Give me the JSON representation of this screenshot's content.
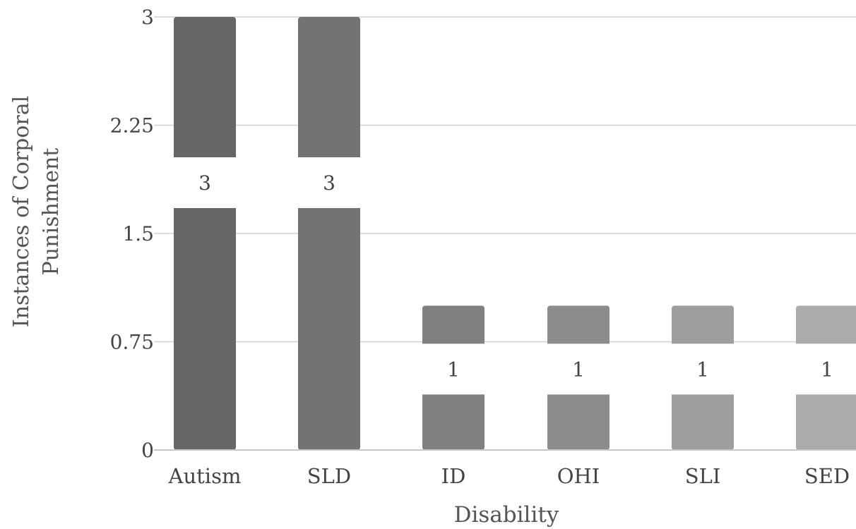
{
  "chart_data": {
    "type": "bar",
    "title": "",
    "xlabel": "Disability",
    "ylabel": "Instances of Corporal Punishment",
    "categories": [
      "Autism",
      "SLD",
      "ID",
      "OHI",
      "SLI",
      "SED"
    ],
    "values": [
      3,
      3,
      1,
      1,
      1,
      1
    ],
    "ylim": [
      0,
      3
    ],
    "yticks": [
      "0",
      "0.75",
      "1.5",
      "2.25",
      "3"
    ],
    "grid": true,
    "legend": "none",
    "bar_colors": [
      "#666666",
      "#737373",
      "#808080",
      "#8c8c8c",
      "#9e9e9e",
      "#ababab"
    ],
    "data_labels": [
      "3",
      "3",
      "1",
      "1",
      "1",
      "1"
    ]
  }
}
